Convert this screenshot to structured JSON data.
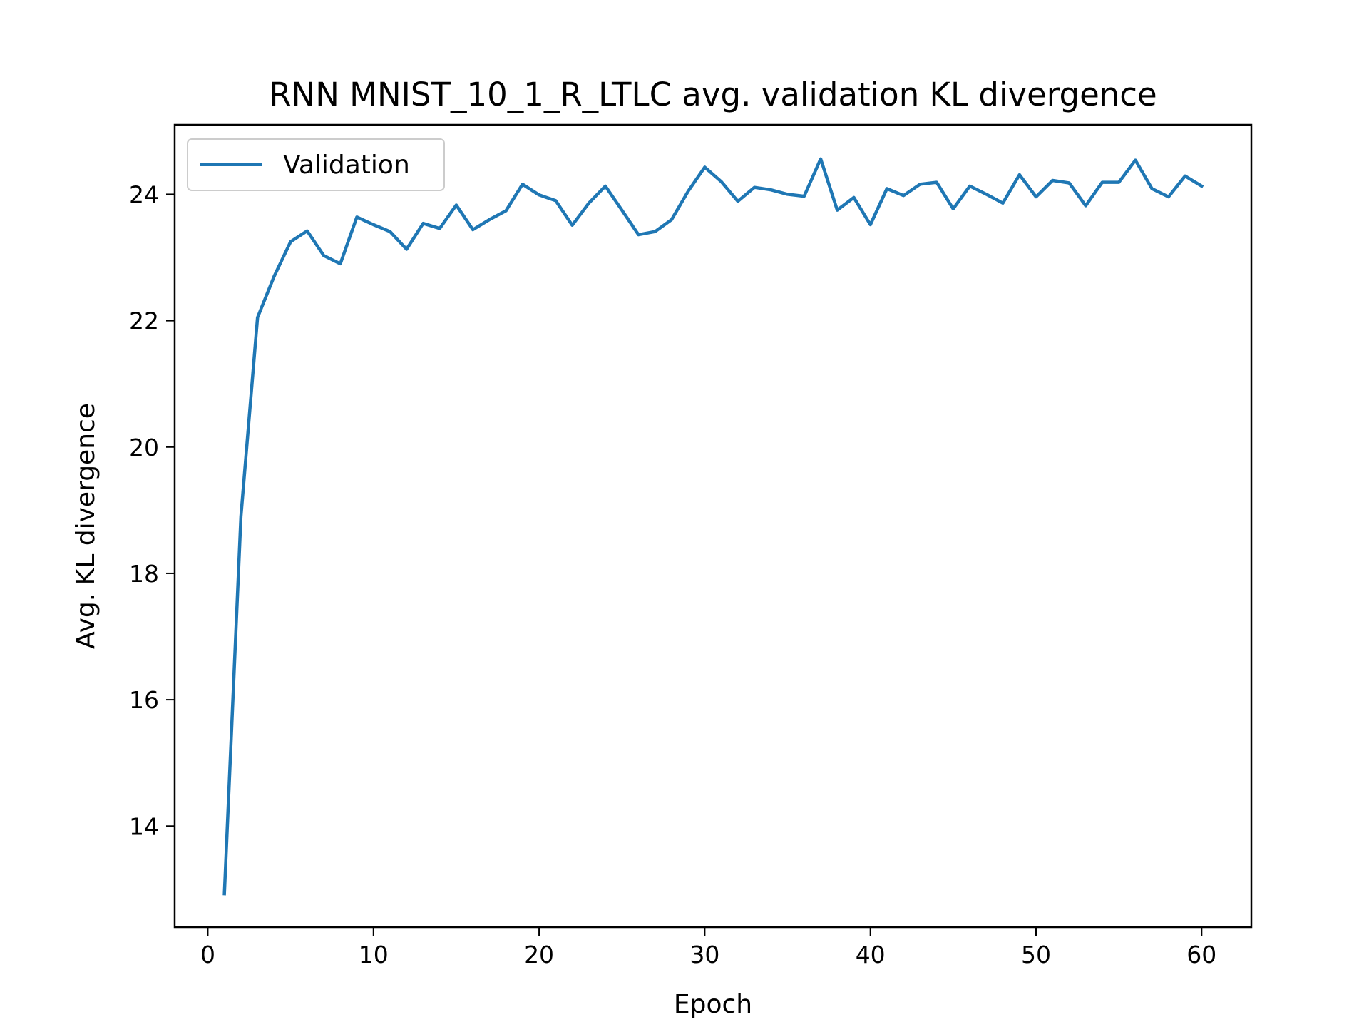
{
  "chart_data": {
    "type": "line",
    "title": "RNN MNIST_10_1_R_LTLC avg. validation KL divergence",
    "xlabel": "Epoch",
    "ylabel": "Avg. KL divergence",
    "xlim": [
      -2,
      63
    ],
    "ylim": [
      12.4,
      25.1
    ],
    "xticks": [
      0,
      10,
      20,
      30,
      40,
      50,
      60
    ],
    "yticks": [
      14,
      16,
      18,
      20,
      22,
      24
    ],
    "grid": false,
    "legend": "upper-left",
    "series": [
      {
        "name": "Validation",
        "color": "#1f77b4",
        "x": [
          1,
          2,
          3,
          4,
          5,
          6,
          7,
          8,
          9,
          10,
          11,
          12,
          13,
          14,
          15,
          16,
          17,
          18,
          19,
          20,
          21,
          22,
          23,
          24,
          25,
          26,
          27,
          28,
          29,
          30,
          31,
          32,
          33,
          34,
          35,
          36,
          37,
          38,
          39,
          40,
          41,
          42,
          43,
          44,
          45,
          46,
          47,
          48,
          49,
          50,
          51,
          52,
          53,
          54,
          55,
          56,
          57,
          58,
          59,
          60
        ],
        "y": [
          12.93,
          18.9,
          22.05,
          22.7,
          23.25,
          23.42,
          23.03,
          22.9,
          23.64,
          23.52,
          23.41,
          23.13,
          23.54,
          23.46,
          23.83,
          23.44,
          23.6,
          23.74,
          24.16,
          23.99,
          23.9,
          23.51,
          23.86,
          24.13,
          23.75,
          23.36,
          23.41,
          23.6,
          24.05,
          24.43,
          24.2,
          23.89,
          24.11,
          24.07,
          24.0,
          23.97,
          24.56,
          23.75,
          23.95,
          23.52,
          24.09,
          23.98,
          24.16,
          24.19,
          23.77,
          24.13,
          24.0,
          23.86,
          24.31,
          23.96,
          24.22,
          24.18,
          23.82,
          24.19,
          24.19,
          24.54,
          24.09,
          23.96,
          24.29,
          24.13
        ]
      }
    ]
  }
}
